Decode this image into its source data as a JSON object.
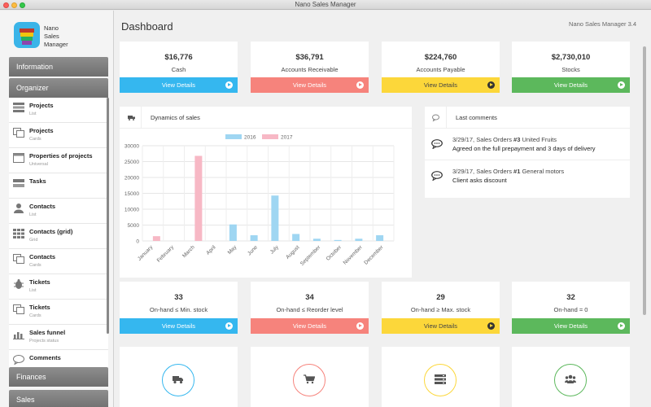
{
  "window": {
    "title": "Nano Sales Manager"
  },
  "brand": {
    "name": "Nano\nSales\nManager"
  },
  "sidebar": {
    "sections": [
      {
        "label": "Information"
      },
      {
        "label": "Organizer"
      },
      {
        "label": "Finances"
      },
      {
        "label": "Sales"
      }
    ],
    "items": [
      {
        "label": "Projects",
        "sub": "List",
        "icon": "list-icon"
      },
      {
        "label": "Projects",
        "sub": "Cards",
        "icon": "cards-icon"
      },
      {
        "label": "Properties of projects",
        "sub": "Universal",
        "icon": "window-icon"
      },
      {
        "label": "Tasks",
        "sub": "",
        "icon": "tasks-icon"
      },
      {
        "label": "Contacts",
        "sub": "List",
        "icon": "person-icon"
      },
      {
        "label": "Contacts (grid)",
        "sub": "Grid",
        "icon": "grid-icon"
      },
      {
        "label": "Contacts",
        "sub": "Cards",
        "icon": "cards-icon"
      },
      {
        "label": "Tickets",
        "sub": "List",
        "icon": "bug-icon"
      },
      {
        "label": "Tickets",
        "sub": "Cards",
        "icon": "cards-icon"
      },
      {
        "label": "Sales funnel",
        "sub": "Projects status",
        "icon": "bar-chart-icon"
      },
      {
        "label": "Comments",
        "sub": "",
        "icon": "comment-icon"
      }
    ]
  },
  "header": {
    "title": "Dashboard",
    "version": "Nano Sales Manager 3.4"
  },
  "summary_cards": [
    {
      "value": "$16,776",
      "caption": "Cash",
      "button": "View Details",
      "color": "#35b7ef"
    },
    {
      "value": "$36,791",
      "caption": "Accounts Receivable",
      "button": "View Details",
      "color": "#f6837c"
    },
    {
      "value": "$224,760",
      "caption": "Accounts Payable",
      "button": "View Details",
      "color": "#fcd73a"
    },
    {
      "value": "$2,730,010",
      "caption": "Stocks",
      "button": "View Details",
      "color": "#5cb85c"
    }
  ],
  "stock_cards": [
    {
      "value": "33",
      "caption": "On-hand ≤ Min. stock",
      "button": "View Details"
    },
    {
      "value": "34",
      "caption": "On-hand ≤ Reorder level",
      "button": "View Details"
    },
    {
      "value": "29",
      "caption": "On-hand ≥ Max. stock",
      "button": "View Details"
    },
    {
      "value": "32",
      "caption": "On-hand = 0",
      "button": "View Details"
    }
  ],
  "sales_panel": {
    "title": "Dynamics of sales",
    "icon": "truck-icon"
  },
  "comments_panel": {
    "title": "Last comments",
    "icon": "comment-icon",
    "items": [
      {
        "meta": "3/29/17, Sales Orders ",
        "num": "#3",
        "target": " United Fruits",
        "text": "Agreed on the full prepayment and 3 days of delivery"
      },
      {
        "meta": "3/29/17, Sales Orders ",
        "num": "#1",
        "target": " General motors",
        "text": "Client asks discount"
      }
    ]
  },
  "bottom_icons": [
    {
      "icon": "truck-icon",
      "color": "#35b7ef"
    },
    {
      "icon": "cart-icon",
      "color": "#f6837c"
    },
    {
      "icon": "server-icon",
      "color": "#fcd73a"
    },
    {
      "icon": "users-icon",
      "color": "#5cb85c"
    }
  ],
  "chart_data": {
    "type": "bar",
    "categories": [
      "January",
      "February",
      "March",
      "April",
      "May",
      "June",
      "July",
      "August",
      "September",
      "October",
      "November",
      "December"
    ],
    "series": [
      {
        "name": "2016",
        "color": "#9fd6f2",
        "values": [
          0,
          0,
          0,
          0,
          5200,
          1800,
          14300,
          2200,
          700,
          300,
          700,
          1800
        ]
      },
      {
        "name": "2017",
        "color": "#f7b8c5",
        "values": [
          1500,
          0,
          26800,
          0,
          0,
          0,
          0,
          0,
          0,
          0,
          0,
          0
        ]
      }
    ],
    "ylim": [
      0,
      30000
    ],
    "yticks": [
      "0",
      "5000",
      "10000",
      "15000",
      "20000",
      "25000",
      "30000"
    ],
    "grid": true,
    "legend": "top"
  }
}
